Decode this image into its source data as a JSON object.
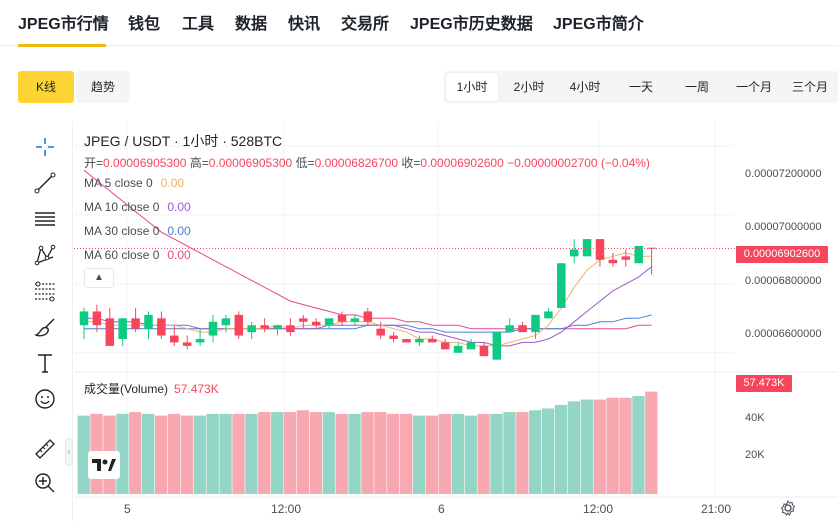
{
  "nav": {
    "items": [
      "JPEG市行情",
      "钱包",
      "工具",
      "数据",
      "快讯",
      "交易所",
      "JPEG市历史数据",
      "JPEG市简介"
    ],
    "active_index": 0,
    "accent": "#f0b90b"
  },
  "chart_modes": {
    "kline": "K线",
    "trend": "趋势",
    "active": "K线"
  },
  "timeframes": {
    "items": [
      "1小时",
      "2小时",
      "4小时",
      "一天",
      "一周",
      "一个月",
      "三个月"
    ],
    "active": "1小时"
  },
  "toolbar": {
    "icons": [
      "crosshair-icon",
      "trend-line-icon",
      "horizontal-lines-icon",
      "pattern-icon",
      "fib-icon",
      "brush-icon",
      "text-icon",
      "emoji-icon",
      "ruler-icon",
      "zoom-in-icon"
    ]
  },
  "legend": {
    "title": "JPEG / USDT · 1小时 · 528BTC",
    "open_label": "开=",
    "open": "0.00006905300",
    "high_label": "高=",
    "high": "0.00006905300",
    "low_label": "低=",
    "low": "0.00006826700",
    "close_label": "收=",
    "close": "0.00006902600",
    "change": "−0.00000002700",
    "change_pct": "(−0.04%)",
    "ma": [
      {
        "label": "MA 5 close 0",
        "value": "0.00",
        "color": "#f0b26a"
      },
      {
        "label": "MA 10 close 0",
        "value": "0.00",
        "color": "#9b59d0"
      },
      {
        "label": "MA 30 close 0",
        "value": "0.00",
        "color": "#4a7fd6"
      },
      {
        "label": "MA 60 close 0",
        "value": "0.00",
        "color": "#e5488a"
      }
    ]
  },
  "volume_legend": {
    "label": "成交量(Volume)",
    "value": "57.473K"
  },
  "price_axis": {
    "labels": [
      "0.00007200000",
      "0.00007000000",
      "0.00006800000",
      "0.00006600000"
    ],
    "current_price": "0.00006902600"
  },
  "volume_axis": {
    "labels": [
      "40K",
      "20K"
    ],
    "current": "57.473K"
  },
  "time_axis": [
    "5",
    "12:00",
    "6",
    "12:00",
    "21:00"
  ],
  "colors": {
    "up": "#0ecb81",
    "down": "#f6465d",
    "up_vol": "#93d6c6",
    "down_vol": "#f8a8b0"
  },
  "chart_data": {
    "type": "candlestick",
    "title": "JPEG / USDT · 1小时 · 528BTC",
    "ylim": [
      6.55e-05,
      7.27e-05
    ],
    "candles": [
      {
        "o": 6.68,
        "h": 6.73,
        "l": 6.64,
        "c": 6.72
      },
      {
        "o": 6.72,
        "h": 6.74,
        "l": 6.66,
        "c": 6.68
      },
      {
        "o": 6.7,
        "h": 6.73,
        "l": 6.62,
        "c": 6.62
      },
      {
        "o": 6.64,
        "h": 6.7,
        "l": 6.62,
        "c": 6.7
      },
      {
        "o": 6.7,
        "h": 6.73,
        "l": 6.66,
        "c": 6.67
      },
      {
        "o": 6.67,
        "h": 6.72,
        "l": 6.64,
        "c": 6.71
      },
      {
        "o": 6.7,
        "h": 6.72,
        "l": 6.64,
        "c": 6.65
      },
      {
        "o": 6.65,
        "h": 6.68,
        "l": 6.62,
        "c": 6.63
      },
      {
        "o": 6.63,
        "h": 6.65,
        "l": 6.61,
        "c": 6.62
      },
      {
        "o": 6.63,
        "h": 6.67,
        "l": 6.62,
        "c": 6.64
      },
      {
        "o": 6.65,
        "h": 6.71,
        "l": 6.63,
        "c": 6.69
      },
      {
        "o": 6.68,
        "h": 6.71,
        "l": 6.66,
        "c": 6.7
      },
      {
        "o": 6.71,
        "h": 6.72,
        "l": 6.64,
        "c": 6.65
      },
      {
        "o": 6.66,
        "h": 6.69,
        "l": 6.64,
        "c": 6.68
      },
      {
        "o": 6.68,
        "h": 6.7,
        "l": 6.66,
        "c": 6.67
      },
      {
        "o": 6.67,
        "h": 6.68,
        "l": 6.65,
        "c": 6.68
      },
      {
        "o": 6.68,
        "h": 6.7,
        "l": 6.65,
        "c": 6.66
      },
      {
        "o": 6.7,
        "h": 6.71,
        "l": 6.67,
        "c": 6.69
      },
      {
        "o": 6.69,
        "h": 6.7,
        "l": 6.67,
        "c": 6.68
      },
      {
        "o": 6.68,
        "h": 6.7,
        "l": 6.67,
        "c": 6.7
      },
      {
        "o": 6.71,
        "h": 6.72,
        "l": 6.68,
        "c": 6.69
      },
      {
        "o": 6.69,
        "h": 6.71,
        "l": 6.68,
        "c": 6.7
      },
      {
        "o": 6.72,
        "h": 6.73,
        "l": 6.68,
        "c": 6.69
      },
      {
        "o": 6.67,
        "h": 6.69,
        "l": 6.64,
        "c": 6.65
      },
      {
        "o": 6.65,
        "h": 6.66,
        "l": 6.63,
        "c": 6.64
      },
      {
        "o": 6.64,
        "h": 6.64,
        "l": 6.63,
        "c": 6.63
      },
      {
        "o": 6.63,
        "h": 6.65,
        "l": 6.62,
        "c": 6.64
      },
      {
        "o": 6.64,
        "h": 6.65,
        "l": 6.63,
        "c": 6.63
      },
      {
        "o": 6.63,
        "h": 6.64,
        "l": 6.61,
        "c": 6.61
      },
      {
        "o": 6.6,
        "h": 6.63,
        "l": 6.6,
        "c": 6.62
      },
      {
        "o": 6.61,
        "h": 6.64,
        "l": 6.61,
        "c": 6.63
      },
      {
        "o": 6.62,
        "h": 6.63,
        "l": 6.59,
        "c": 6.59
      },
      {
        "o": 6.58,
        "h": 6.66,
        "l": 6.58,
        "c": 6.66
      },
      {
        "o": 6.66,
        "h": 6.7,
        "l": 6.66,
        "c": 6.68
      },
      {
        "o": 6.68,
        "h": 6.69,
        "l": 6.66,
        "c": 6.66
      },
      {
        "o": 6.66,
        "h": 6.71,
        "l": 6.64,
        "c": 6.71
      },
      {
        "o": 6.7,
        "h": 6.73,
        "l": 6.7,
        "c": 6.72
      },
      {
        "o": 6.73,
        "h": 6.86,
        "l": 6.73,
        "c": 6.86
      },
      {
        "o": 6.88,
        "h": 6.93,
        "l": 6.86,
        "c": 6.9
      },
      {
        "o": 6.88,
        "h": 6.93,
        "l": 6.88,
        "c": 6.93
      },
      {
        "o": 6.93,
        "h": 6.93,
        "l": 6.85,
        "c": 6.87
      },
      {
        "o": 6.87,
        "h": 6.89,
        "l": 6.85,
        "c": 6.86
      },
      {
        "o": 6.88,
        "h": 6.9,
        "l": 6.85,
        "c": 6.87
      },
      {
        "o": 6.86,
        "h": 6.91,
        "l": 6.86,
        "c": 6.91
      },
      {
        "o": 6.905,
        "h": 6.905,
        "l": 6.827,
        "c": 6.903
      }
    ],
    "volume": [
      44,
      45,
      44,
      45,
      46,
      45,
      44,
      45,
      44,
      44,
      45,
      45,
      45,
      45,
      46,
      46,
      46,
      47,
      46,
      46,
      45,
      45,
      46,
      46,
      45,
      45,
      44,
      44,
      45,
      45,
      44,
      45,
      45,
      46,
      46,
      47,
      48,
      50,
      52,
      53,
      53,
      54,
      54,
      55,
      57.473
    ],
    "volume_ylim": [
      0,
      60
    ],
    "ma5": [
      6.69,
      6.69,
      6.68,
      6.68,
      6.68,
      6.68,
      6.68,
      6.68,
      6.67,
      6.66,
      6.66,
      6.67,
      6.67,
      6.67,
      6.67,
      6.68,
      6.67,
      6.68,
      6.68,
      6.68,
      6.69,
      6.69,
      6.69,
      6.68,
      6.67,
      6.66,
      6.64,
      6.64,
      6.63,
      6.63,
      6.62,
      6.62,
      6.62,
      6.63,
      6.64,
      6.65,
      6.68,
      6.73,
      6.79,
      6.84,
      6.87,
      6.88,
      6.89,
      6.88,
      6.88
    ],
    "ma10": [
      6.7,
      6.7,
      6.69,
      6.69,
      6.69,
      6.68,
      6.68,
      6.68,
      6.68,
      6.67,
      6.67,
      6.67,
      6.67,
      6.67,
      6.67,
      6.67,
      6.67,
      6.67,
      6.67,
      6.68,
      6.68,
      6.68,
      6.68,
      6.68,
      6.68,
      6.67,
      6.66,
      6.66,
      6.65,
      6.64,
      6.63,
      6.63,
      6.62,
      6.62,
      6.63,
      6.63,
      6.64,
      6.66,
      6.69,
      6.72,
      6.75,
      6.78,
      6.8,
      6.82,
      6.85
    ],
    "ma30": [
      6.67,
      6.67,
      6.67,
      6.67,
      6.67,
      6.67,
      6.67,
      6.67,
      6.67,
      6.67,
      6.67,
      6.67,
      6.67,
      6.67,
      6.67,
      6.67,
      6.67,
      6.67,
      6.67,
      6.67,
      6.67,
      6.67,
      6.68,
      6.68,
      6.68,
      6.68,
      6.67,
      6.67,
      6.66,
      6.66,
      6.66,
      6.66,
      6.66,
      6.66,
      6.67,
      6.67,
      6.67,
      6.67,
      6.68,
      6.68,
      6.69,
      6.69,
      6.7,
      6.7,
      6.71
    ],
    "ma60": [
      7.13,
      7.1,
      7.07,
      7.04,
      7.01,
      6.98,
      6.95,
      6.93,
      6.91,
      6.89,
      6.87,
      6.85,
      6.83,
      6.81,
      6.79,
      6.77,
      6.75,
      6.74,
      6.73,
      6.72,
      6.71,
      6.71,
      6.7,
      6.7,
      6.7,
      6.69,
      6.69,
      6.68,
      6.68,
      6.68,
      6.67,
      6.67,
      6.67,
      6.67,
      6.67,
      6.67,
      6.67,
      6.67,
      6.67,
      6.67,
      6.67,
      6.67,
      6.67,
      6.68,
      6.68
    ]
  }
}
